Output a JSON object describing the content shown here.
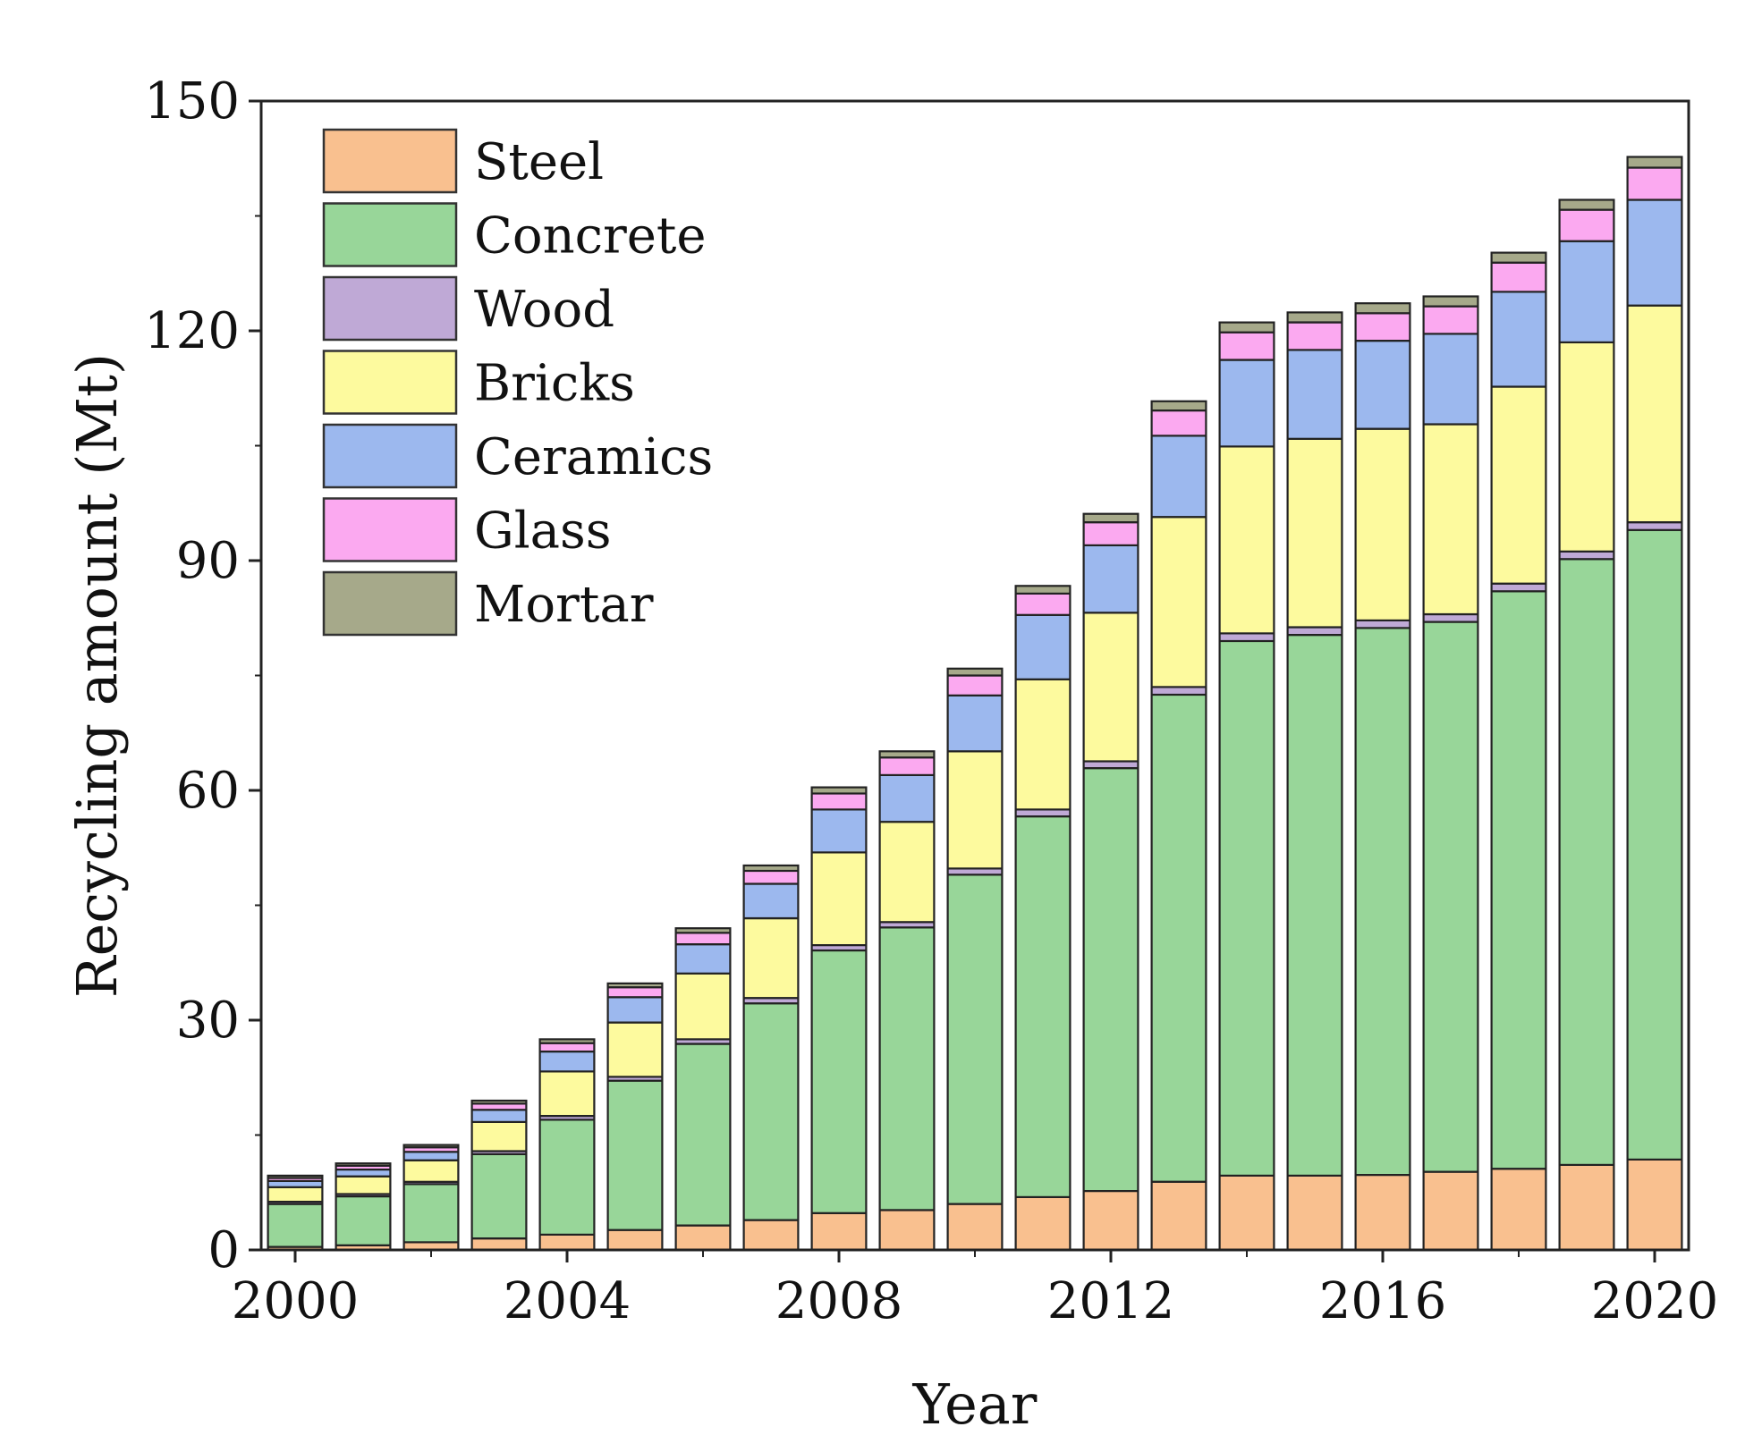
{
  "chart_data": {
    "type": "bar",
    "stacked": true,
    "title": "",
    "xlabel": "Year",
    "ylabel": "Recycling amount (Mt)",
    "ylim": [
      0,
      150
    ],
    "yticks": [
      "0",
      "30",
      "60",
      "90",
      "120",
      "150"
    ],
    "xticks": [
      "2000",
      "2004",
      "2008",
      "2012",
      "2016",
      "2020"
    ],
    "legend_position": "top-left",
    "categories": [
      "2000",
      "2001",
      "2002",
      "2003",
      "2004",
      "2005",
      "2006",
      "2007",
      "2008",
      "2009",
      "2010",
      "2011",
      "2012",
      "2013",
      "2014",
      "2015",
      "2016",
      "2017",
      "2018",
      "2019",
      "2020"
    ],
    "series": [
      {
        "name": "Steel",
        "color": "#F9C08F",
        "values": [
          0.4,
          0.6,
          1.0,
          1.5,
          2.0,
          2.6,
          3.2,
          3.9,
          4.8,
          5.2,
          6.0,
          6.9,
          7.7,
          8.9,
          9.7,
          9.7,
          9.8,
          10.2,
          10.6,
          11.1,
          11.8
        ]
      },
      {
        "name": "Concrete",
        "color": "#98D699",
        "values": [
          5.6,
          6.4,
          7.6,
          11.0,
          15.0,
          19.5,
          23.7,
          28.3,
          34.3,
          36.9,
          43.0,
          49.7,
          55.2,
          63.6,
          69.8,
          70.6,
          71.4,
          71.8,
          75.4,
          79.1,
          82.2
        ]
      },
      {
        "name": "Wood",
        "color": "#BFA9D6",
        "values": [
          0.3,
          0.3,
          0.3,
          0.4,
          0.5,
          0.5,
          0.6,
          0.7,
          0.7,
          0.7,
          0.8,
          0.9,
          0.9,
          1.0,
          1.0,
          1.0,
          1.0,
          1.0,
          1.0,
          1.0,
          1.0
        ]
      },
      {
        "name": "Bricks",
        "color": "#FDFA9E",
        "values": [
          1.9,
          2.3,
          2.8,
          3.8,
          5.8,
          7.1,
          8.6,
          10.4,
          12.1,
          13.1,
          15.3,
          17.0,
          19.4,
          22.2,
          24.4,
          24.6,
          25.0,
          24.8,
          25.7,
          27.3,
          28.3
        ]
      },
      {
        "name": "Ceramics",
        "color": "#9CB8EE",
        "values": [
          0.8,
          0.9,
          1.1,
          1.6,
          2.6,
          3.3,
          3.8,
          4.5,
          5.6,
          6.1,
          7.3,
          8.4,
          8.8,
          10.6,
          11.3,
          11.6,
          11.5,
          11.8,
          12.4,
          13.2,
          13.8
        ]
      },
      {
        "name": "Glass",
        "color": "#FBA9F0",
        "values": [
          0.4,
          0.5,
          0.6,
          0.8,
          1.1,
          1.3,
          1.5,
          1.7,
          2.1,
          2.3,
          2.6,
          2.8,
          3.0,
          3.3,
          3.6,
          3.6,
          3.6,
          3.6,
          3.8,
          4.1,
          4.2
        ]
      },
      {
        "name": "Mortar",
        "color": "#A6A98A",
        "values": [
          0.3,
          0.3,
          0.3,
          0.4,
          0.5,
          0.5,
          0.6,
          0.7,
          0.8,
          0.8,
          0.9,
          1.0,
          1.1,
          1.2,
          1.3,
          1.3,
          1.3,
          1.3,
          1.3,
          1.3,
          1.4
        ]
      }
    ]
  }
}
